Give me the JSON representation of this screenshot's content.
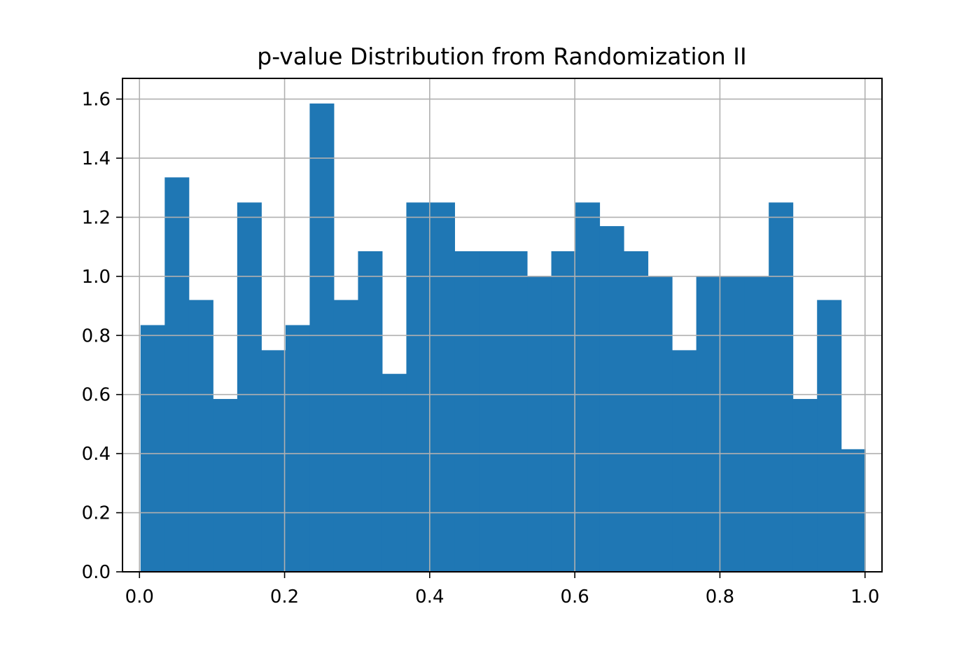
{
  "chart_data": {
    "type": "bar",
    "title": "p-value Distribution from Randomization II",
    "xlabel": "",
    "ylabel": "",
    "xlim": [
      -0.0234,
      1.0234
    ],
    "ylim": [
      0,
      1.67
    ],
    "x_ticks": [
      0.0,
      0.2,
      0.4,
      0.6,
      0.8,
      1.0
    ],
    "x_tick_labels": [
      "0.0",
      "0.2",
      "0.4",
      "0.6",
      "0.8",
      "1.0"
    ],
    "y_ticks": [
      0.0,
      0.2,
      0.4,
      0.6,
      0.8,
      1.0,
      1.2,
      1.4,
      1.6
    ],
    "y_tick_labels": [
      "0.0",
      "0.2",
      "0.4",
      "0.6",
      "0.8",
      "1.0",
      "1.2",
      "1.4",
      "1.6"
    ],
    "grid": true,
    "bin_edges": [
      0.0015,
      0.0348,
      0.0681,
      0.1014,
      0.1347,
      0.168,
      0.2013,
      0.2346,
      0.2679,
      0.3012,
      0.3345,
      0.3678,
      0.4011,
      0.4344,
      0.4677,
      0.501,
      0.5343,
      0.5676,
      0.6009,
      0.6342,
      0.6675,
      0.7008,
      0.7341,
      0.7674,
      0.8007,
      0.834,
      0.8673,
      0.9006,
      0.9339,
      0.9672,
      1.0005
    ],
    "values": [
      0.835,
      1.335,
      0.92,
      0.585,
      1.25,
      0.75,
      0.835,
      1.585,
      0.92,
      1.085,
      0.67,
      1.25,
      1.25,
      1.085,
      1.085,
      1.085,
      1.0,
      1.085,
      1.25,
      1.17,
      1.085,
      1.0,
      0.75,
      1.0,
      1.0,
      1.0,
      1.25,
      0.585,
      0.92,
      0.415
    ],
    "bar_color": "#1f77b4",
    "grid_color": "#b0b0b0"
  }
}
